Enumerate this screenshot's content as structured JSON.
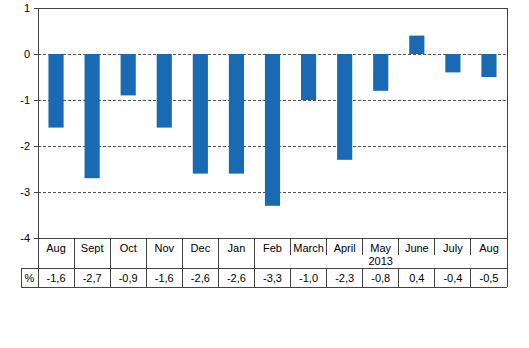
{
  "chart_data": {
    "type": "bar",
    "categories": [
      "Aug",
      "Sept",
      "Oct",
      "Nov",
      "Dec",
      "Jan",
      "Feb",
      "March",
      "April",
      "May",
      "June",
      "July",
      "Aug"
    ],
    "values": [
      -1.6,
      -2.7,
      -0.9,
      -1.6,
      -2.6,
      -2.6,
      -3.3,
      -1.0,
      -2.3,
      -0.8,
      0.4,
      -0.4,
      -0.5
    ],
    "value_labels": [
      "-1,6",
      "-2,7",
      "-0,9",
      "-1,6",
      "-2,6",
      "-2,6",
      "-3,3",
      "-1,0",
      "-2,3",
      "-0,8",
      "0,4",
      "-0,4",
      "-0,5"
    ],
    "data_labels": true,
    "ylabel": "%",
    "annotations": [
      "2013"
    ],
    "color": "#1a6ab3",
    "ylim": [
      -4,
      1
    ],
    "yticks": [
      1,
      0,
      -1,
      -2,
      -3,
      -4
    ],
    "grid": true
  }
}
